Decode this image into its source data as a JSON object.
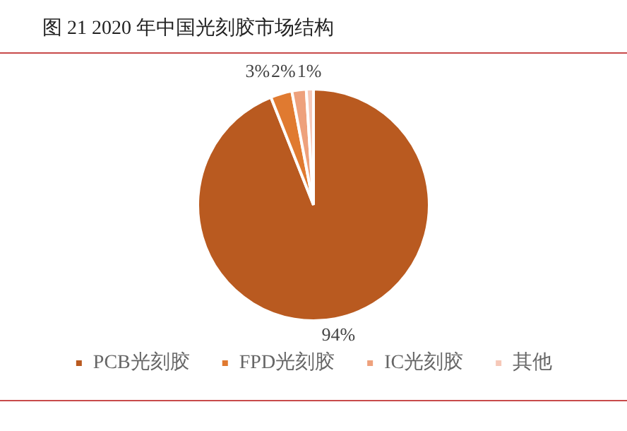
{
  "chart_data": {
    "type": "pie",
    "title": "图 21 2020 年中国光刻胶市场结构",
    "categories": [
      "PCB光刻胶",
      "FPD光刻胶",
      "IC光刻胶",
      "其他"
    ],
    "values": [
      94,
      3,
      2,
      1
    ],
    "colors": [
      "#b95a20",
      "#e07a30",
      "#eea17c",
      "#f6c8b8"
    ],
    "value_labels": [
      "94%",
      "3%",
      "2%",
      "1%"
    ],
    "legend": "bottom"
  }
}
